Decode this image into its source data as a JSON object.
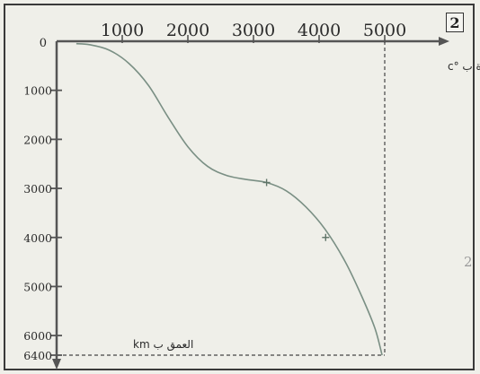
{
  "figure": {
    "number": "2",
    "margin_mark": "2"
  },
  "chart_data": {
    "type": "line",
    "x_axis": {
      "label": "درجة الحرارة ب °c",
      "ticks": [
        1000,
        2000,
        3000,
        4000,
        5000
      ],
      "tick_labels": [
        "1000",
        "2000",
        "3000",
        "4000",
        "5000"
      ],
      "range": [
        0,
        5500
      ],
      "position": "top"
    },
    "y_axis": {
      "label": "العمق ب km",
      "ticks": [
        0,
        1000,
        2000,
        3000,
        4000,
        5000,
        6000,
        6400
      ],
      "tick_labels": [
        "0",
        "1000",
        "2000",
        "3000",
        "4000",
        "5000",
        "6000",
        "6400"
      ],
      "range": [
        0,
        6400
      ],
      "inverted": true
    },
    "series": [
      {
        "color": "#7a8f84",
        "points": [
          [
            300,
            50
          ],
          [
            500,
            70
          ],
          [
            800,
            180
          ],
          [
            1100,
            450
          ],
          [
            1400,
            900
          ],
          [
            1700,
            1550
          ],
          [
            2000,
            2150
          ],
          [
            2300,
            2550
          ],
          [
            2600,
            2740
          ],
          [
            2900,
            2820
          ],
          [
            3200,
            2880
          ],
          [
            3500,
            3050
          ],
          [
            3800,
            3380
          ],
          [
            4100,
            3850
          ],
          [
            4400,
            4500
          ],
          [
            4650,
            5200
          ],
          [
            4850,
            5850
          ],
          [
            4960,
            6400
          ]
        ]
      }
    ],
    "markers": [
      [
        3200,
        2880
      ],
      [
        4100,
        4000
      ]
    ],
    "reference_lines": [
      {
        "orientation": "vertical",
        "x": 5000,
        "style": "dashed"
      },
      {
        "orientation": "horizontal",
        "y": 6400,
        "style": "dashed"
      }
    ],
    "grid": false,
    "colors": {
      "axis": "#555555",
      "curve": "#7a8f84",
      "reference": "#444444"
    }
  }
}
